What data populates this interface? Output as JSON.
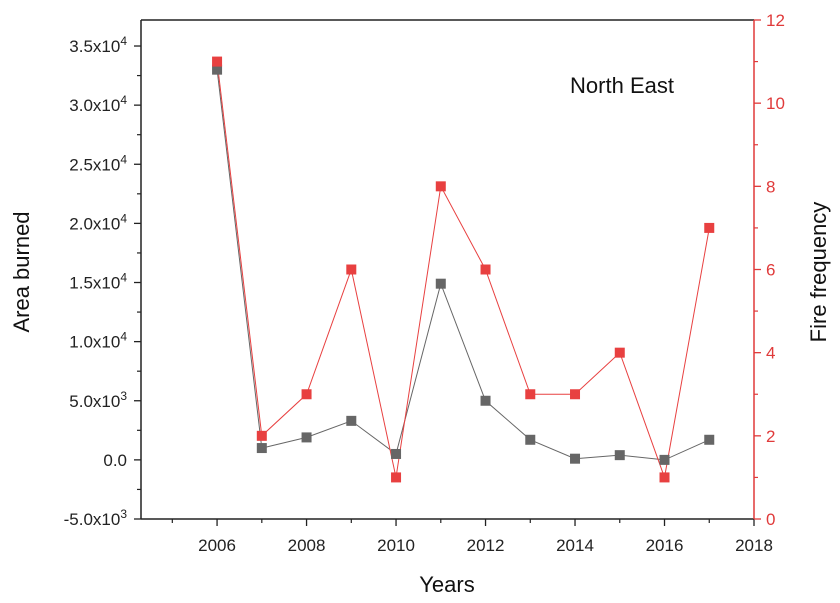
{
  "chart_data": {
    "type": "line",
    "annotation": "North East",
    "xlabel": "Years",
    "ylabel_left": "Area burned",
    "ylabel_right": "Fire frequency",
    "xlim": [
      2004.3,
      2018
    ],
    "ylim_left": [
      -5000,
      37200
    ],
    "ylim_right": [
      0,
      12
    ],
    "x_ticks": [
      2006,
      2008,
      2010,
      2012,
      2014,
      2016,
      2018
    ],
    "left_ticks": [
      {
        "value": -5000,
        "mantissa": "-5.0",
        "exp": "3"
      },
      {
        "value": 0,
        "mantissa": "0.0",
        "exp": ""
      },
      {
        "value": 5000,
        "mantissa": "5.0",
        "exp": "3"
      },
      {
        "value": 10000,
        "mantissa": "1.0",
        "exp": "4"
      },
      {
        "value": 15000,
        "mantissa": "1.5",
        "exp": "4"
      },
      {
        "value": 20000,
        "mantissa": "2.0",
        "exp": "4"
      },
      {
        "value": 25000,
        "mantissa": "2.5",
        "exp": "4"
      },
      {
        "value": 30000,
        "mantissa": "3.0",
        "exp": "4"
      },
      {
        "value": 35000,
        "mantissa": "3.5",
        "exp": "4"
      }
    ],
    "right_ticks": [
      0,
      2,
      4,
      6,
      8,
      10,
      12
    ],
    "series": [
      {
        "axis": "left",
        "color": "#666666",
        "x": [
          2006,
          2007,
          2008,
          2009,
          2010,
          2011,
          2012,
          2013,
          2014,
          2015,
          2016,
          2017
        ],
        "y": [
          33000,
          1000,
          1900,
          3300,
          500,
          14900,
          5000,
          1700,
          100,
          400,
          0,
          1700
        ]
      },
      {
        "axis": "right",
        "color": "#e84040",
        "x": [
          2006,
          2007,
          2008,
          2009,
          2010,
          2011,
          2012,
          2013,
          2014,
          2015,
          2016,
          2017
        ],
        "y": [
          11,
          2,
          3,
          6,
          1,
          8,
          6,
          3,
          3,
          4,
          1,
          7
        ]
      }
    ],
    "colors": {
      "left_axis": "#222222",
      "right_axis": "#e03a3a"
    }
  }
}
